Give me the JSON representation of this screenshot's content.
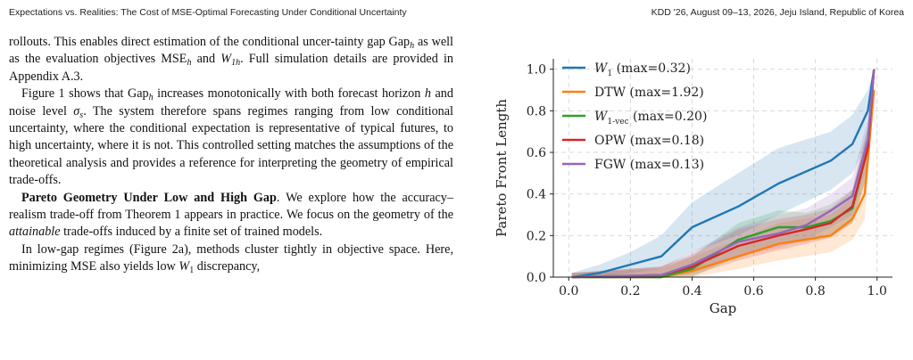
{
  "header": {
    "left": "Expectations vs. Realities: The Cost of MSE-Optimal Forecasting Under Conditional Uncertainty",
    "right": "KDD '26, August 09–13, 2026, Jeju Island, Republic of Korea"
  },
  "body": {
    "p1": {
      "a": "rollouts. This enables direct estimation of the conditional uncer-tainty gap ",
      "gap_sym": "Gap",
      "b": " as well as the evaluation objectives MSE",
      "c": " and ",
      "w1": "W",
      "d": ". Full simulation details are provided in Appendix A.3.",
      "sub_h": "h",
      "sub_1h": "1h"
    },
    "p2": {
      "a": "Figure 1 shows that ",
      "gap_sym": "Gap",
      "sub_h": "h",
      "b": " increases monotonically with both forecast horizon ",
      "h": "h",
      "c": " and noise level ",
      "sigma": "σ",
      "sub_s": "s",
      "d": ". The system therefore spans regimes ranging from low conditional uncertainty, where the conditional expectation is representative of typical futures, to high uncertainty, where it is not. This controlled setting matches the assumptions of the theoretical analysis and provides a reference for interpreting the geometry of empirical trade-offs."
    },
    "p3": {
      "heading": "Pareto Geometry Under Low and High Gap",
      "a": ". We explore how the accuracy–realism trade-off from Theorem 1 appears in practice. We focus on the geometry of the ",
      "em": "attainable",
      "b": " trade-offs induced by a finite set of trained models."
    },
    "p4": {
      "a": "In low-gap regimes (Figure 2a), methods cluster tightly in objective space. Here, minimizing MSE also yields low ",
      "w1": "W",
      "sub_1": "1",
      "b": " discrepancy,"
    }
  },
  "chart_data": {
    "type": "line",
    "xlabel": "Gap",
    "ylabel": "Pareto Front Length",
    "xlim": [
      -0.05,
      1.05
    ],
    "ylim": [
      0.0,
      1.05
    ],
    "xticks": [
      "0.0",
      "0.2",
      "0.4",
      "0.6",
      "0.8",
      "1.0"
    ],
    "yticks": [
      "0.0",
      "0.2",
      "0.4",
      "0.6",
      "0.8",
      "1.0"
    ],
    "grid": true,
    "legend_position": "top-left",
    "series": [
      {
        "name": "W1 (max=0.32)",
        "legend_main": "W",
        "legend_sub": "1",
        "legend_rest": " (max=0.32)",
        "color": "#1f77b4",
        "x": [
          0.01,
          0.1,
          0.2,
          0.3,
          0.4,
          0.55,
          0.68,
          0.85,
          0.92,
          0.97,
          0.99
        ],
        "y": [
          0.0,
          0.02,
          0.06,
          0.1,
          0.24,
          0.34,
          0.45,
          0.56,
          0.64,
          0.8,
          1.0
        ],
        "lower": [
          0.0,
          0.0,
          0.02,
          0.04,
          0.12,
          0.2,
          0.3,
          0.42,
          0.5,
          0.65,
          0.95
        ],
        "upper": [
          0.02,
          0.06,
          0.12,
          0.2,
          0.36,
          0.5,
          0.62,
          0.7,
          0.78,
          0.9,
          1.0
        ]
      },
      {
        "name": "DTW (max=1.92)",
        "legend_main": "DTW",
        "legend_sub": "",
        "legend_rest": " (max=1.92)",
        "color": "#ff7f0e",
        "x": [
          0.01,
          0.2,
          0.3,
          0.4,
          0.55,
          0.68,
          0.85,
          0.92,
          0.96,
          0.99
        ],
        "y": [
          0.0,
          0.0,
          0.0,
          0.03,
          0.1,
          0.16,
          0.2,
          0.28,
          0.4,
          0.9
        ],
        "lower": [
          0.0,
          0.0,
          0.0,
          0.0,
          0.04,
          0.08,
          0.12,
          0.18,
          0.28,
          0.85
        ],
        "upper": [
          0.02,
          0.04,
          0.05,
          0.1,
          0.18,
          0.26,
          0.3,
          0.38,
          0.52,
          0.95
        ]
      },
      {
        "name": "W1-vec (max=0.20)",
        "legend_main": "W",
        "legend_sub": "1-vec",
        "legend_rest": " (max=0.20)",
        "color": "#2ca02c",
        "x": [
          0.01,
          0.3,
          0.4,
          0.55,
          0.68,
          0.77,
          0.85,
          0.92,
          0.97,
          0.99
        ],
        "y": [
          0.0,
          0.0,
          0.04,
          0.18,
          0.24,
          0.24,
          0.27,
          0.33,
          0.62,
          1.0
        ],
        "lower": [
          0.0,
          0.0,
          0.0,
          0.1,
          0.16,
          0.17,
          0.2,
          0.26,
          0.5,
          0.97
        ],
        "upper": [
          0.02,
          0.04,
          0.1,
          0.26,
          0.32,
          0.31,
          0.35,
          0.42,
          0.72,
          1.0
        ]
      },
      {
        "name": "OPW (max=0.18)",
        "legend_main": "OPW",
        "legend_sub": "",
        "legend_rest": " (max=0.18)",
        "color": "#d62728",
        "x": [
          0.01,
          0.3,
          0.4,
          0.55,
          0.68,
          0.77,
          0.85,
          0.92,
          0.97,
          0.99
        ],
        "y": [
          0.0,
          0.01,
          0.05,
          0.15,
          0.2,
          0.23,
          0.26,
          0.34,
          0.62,
          1.0
        ],
        "lower": [
          0.0,
          0.0,
          0.01,
          0.08,
          0.13,
          0.16,
          0.19,
          0.26,
          0.5,
          0.97
        ],
        "upper": [
          0.02,
          0.05,
          0.11,
          0.23,
          0.28,
          0.3,
          0.33,
          0.42,
          0.72,
          1.0
        ]
      },
      {
        "name": "FGW (max=0.13)",
        "legend_main": "FGW",
        "legend_sub": "",
        "legend_rest": " (max=0.13)",
        "color": "#9467bd",
        "x": [
          0.01,
          0.3,
          0.4,
          0.55,
          0.68,
          0.77,
          0.85,
          0.92,
          0.97,
          0.99
        ],
        "y": [
          0.0,
          0.01,
          0.06,
          0.17,
          0.21,
          0.25,
          0.32,
          0.39,
          0.66,
          1.0
        ],
        "lower": [
          0.0,
          0.0,
          0.02,
          0.1,
          0.14,
          0.18,
          0.24,
          0.3,
          0.55,
          0.97
        ],
        "upper": [
          0.02,
          0.05,
          0.12,
          0.24,
          0.3,
          0.33,
          0.4,
          0.48,
          0.76,
          1.0
        ]
      }
    ]
  }
}
